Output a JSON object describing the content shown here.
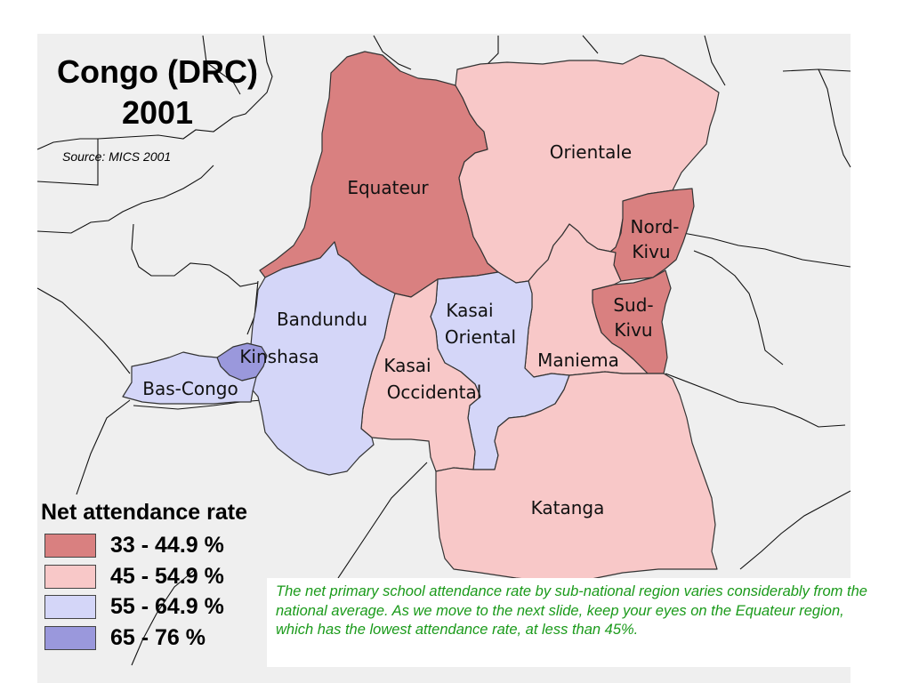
{
  "title_line1": "Congo (DRC)",
  "title_line2": "2001",
  "source": "Source: MICS 2001",
  "legend": {
    "title": "Net attendance rate",
    "items": [
      {
        "label": "33 - 44.9 %",
        "color": "#d98080"
      },
      {
        "label": "45 - 54.9 %",
        "color": "#f8c8c8"
      },
      {
        "label": "55 - 64.9 %",
        "color": "#d4d6f8"
      },
      {
        "label": "65 - 76 %",
        "color": "#9a98dc"
      }
    ]
  },
  "regions": [
    {
      "name": "equateur",
      "lines": [
        "Equateur"
      ],
      "class": "33 - 44.9 %"
    },
    {
      "name": "orientale",
      "lines": [
        "Orientale"
      ],
      "class": "45 - 54.9 %"
    },
    {
      "name": "nord-kivu",
      "lines": [
        "Nord-",
        "Kivu"
      ],
      "class": "33 - 44.9 %"
    },
    {
      "name": "sud-kivu",
      "lines": [
        "Sud-",
        "Kivu"
      ],
      "class": "33 - 44.9 %"
    },
    {
      "name": "bandundu",
      "lines": [
        "Bandundu"
      ],
      "class": "55 - 64.9 %"
    },
    {
      "name": "kinshasa",
      "lines": [
        "Kinshasa"
      ],
      "class": "65 - 76 %"
    },
    {
      "name": "bas-congo",
      "lines": [
        "Bas-Congo"
      ],
      "class": "55 - 64.9 %"
    },
    {
      "name": "kasai-oriental",
      "lines": [
        "Kasai",
        "Oriental"
      ],
      "class": "55 - 64.9 %"
    },
    {
      "name": "kasai-occidental",
      "lines": [
        "Kasai",
        "Occidental"
      ],
      "class": "45 - 54.9 %"
    },
    {
      "name": "maniema",
      "lines": [
        "Maniema"
      ],
      "class": "45 - 54.9 %"
    },
    {
      "name": "katanga",
      "lines": [
        "Katanga"
      ],
      "class": "45 - 54.9 %"
    }
  ],
  "caption": "The net primary school attendance rate by sub-national region varies considerably from the national average.  As we move to the next slide, keep your eyes on the Equateur region, which has the lowest attendance rate, at less than 45%.",
  "colors": {
    "background": "#efefef",
    "border": "#333333",
    "caption_text": "#1a9a1a"
  }
}
